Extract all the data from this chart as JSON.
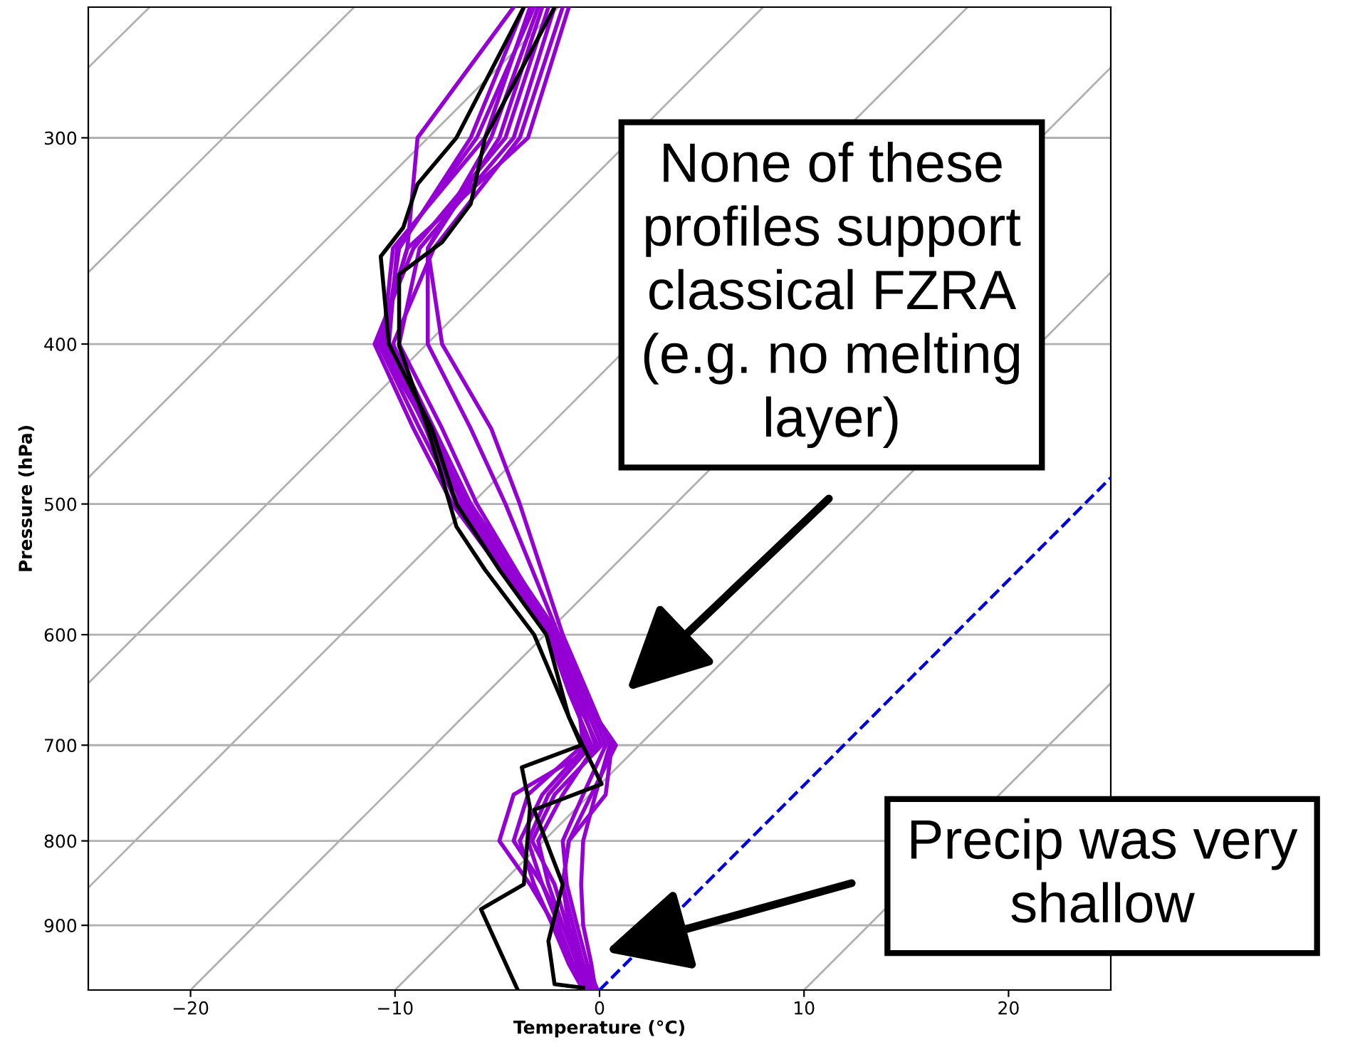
{
  "chart_data": {
    "type": "line",
    "xlabel": "Temperature (°C)",
    "ylabel": "Pressure (hPa)",
    "xlim": [
      -25,
      25
    ],
    "ylim": [
      985,
      250
    ],
    "log": "y",
    "grid": "y",
    "legend": false,
    "line_style": "solid",
    "marker": "none",
    "xticks": [
      {
        "value": -20,
        "label": "−20"
      },
      {
        "value": -10,
        "label": "−10"
      },
      0,
      10,
      20
    ],
    "yticks": [
      300,
      400,
      500,
      600,
      700,
      800,
      900
    ],
    "series": [
      {
        "color": "#b0b0b0",
        "x": [
          10,
          25
        ],
        "values": [
          985,
          642
        ]
      },
      {
        "color": "#b0b0b0",
        "x": [
          -10,
          25
        ],
        "values": [
          985,
          362
        ]
      },
      {
        "color": "#b0b0b0",
        "x": [
          -20,
          25
        ],
        "values": [
          985,
          272
        ]
      },
      {
        "color": "#b0b0b0",
        "x": [
          -25,
          18.0
        ],
        "values": [
          854,
          250
        ]
      },
      {
        "color": "#b0b0b0",
        "x": [
          -25,
          8.0
        ],
        "values": [
          642,
          250
        ]
      },
      {
        "color": "#b0b0b0",
        "x": [
          -25,
          -2.0
        ],
        "values": [
          482,
          250
        ]
      },
      {
        "color": "#b0b0b0",
        "x": [
          -25,
          -12.0
        ],
        "values": [
          362,
          250
        ]
      },
      {
        "color": "#b0b0b0",
        "x": [
          -25,
          -22.0
        ],
        "values": [
          272,
          250
        ]
      },
      {
        "color": "#9400d3",
        "x": [
          -3.4,
          -5.6,
          -10.1,
          -10.6,
          -8.4,
          -6.7,
          -2.3,
          -1.1,
          -0.2,
          -1.8,
          -3.0,
          -2.5,
          -1.8,
          -1.1,
          -0.4
        ],
        "values": [
          250,
          300,
          350,
          400,
          450,
          500,
          600,
          650,
          700,
          750,
          800,
          850,
          900,
          950,
          985
        ]
      },
      {
        "color": "#9400d3",
        "x": [
          -2.5,
          -4.6,
          -9.1,
          -11.0,
          -9.1,
          -7.2,
          -2.5,
          -1.3,
          -0.6,
          -2.8,
          -3.9,
          -3.2,
          -2.3,
          -1.5,
          -0.8
        ],
        "values": [
          250,
          300,
          350,
          400,
          450,
          500,
          600,
          650,
          700,
          750,
          800,
          850,
          900,
          950,
          985
        ]
      },
      {
        "color": "#9400d3",
        "x": [
          -1.8,
          -3.9,
          -8.1,
          -10.1,
          -8.1,
          -6.3,
          -2.0,
          -0.8,
          0.3,
          -0.8,
          -1.8,
          -1.6,
          -1.1,
          -0.6,
          -0.1
        ],
        "values": [
          250,
          300,
          350,
          400,
          450,
          500,
          600,
          650,
          700,
          750,
          800,
          850,
          900,
          950,
          985
        ]
      },
      {
        "color": "#9400d3",
        "x": [
          -2.8,
          -4.9,
          -8.4,
          -7.7,
          -5.3,
          -3.9,
          -1.8,
          -0.6,
          0.5,
          -0.2,
          -0.8,
          -0.9,
          -0.8,
          -0.4,
          -0.2
        ],
        "values": [
          250,
          300,
          350,
          400,
          450,
          500,
          600,
          650,
          700,
          750,
          800,
          850,
          900,
          950,
          985
        ]
      },
      {
        "color": "#9400d3",
        "x": [
          -3.0,
          -5.3,
          -8.4,
          -8.4,
          -6.3,
          -4.6,
          -2.0,
          -0.8,
          0.6,
          0.3,
          -1.5,
          -1.8,
          -1.5,
          -0.8,
          -0.3
        ],
        "values": [
          250,
          300,
          350,
          400,
          450,
          500,
          600,
          650,
          700,
          750,
          800,
          850,
          900,
          950,
          985
        ]
      },
      {
        "color": "#9400d3",
        "x": [
          -4.2,
          -8.9,
          -9.4,
          -10.8,
          -8.8,
          -6.9,
          -2.5,
          -1.5,
          -0.4,
          -2.5,
          -3.5,
          -2.8,
          -2.0,
          -1.3,
          -0.6
        ],
        "values": [
          250,
          300,
          350,
          400,
          450,
          500,
          600,
          650,
          700,
          750,
          800,
          850,
          900,
          950,
          985
        ]
      },
      {
        "color": "#9400d3",
        "x": [
          -3.7,
          -6.3,
          -9.8,
          -10.5,
          -8.5,
          -7.0,
          -2.4,
          -1.3,
          -0.1,
          -4.2,
          -4.9,
          -3.4,
          -2.2,
          -1.3,
          -0.3
        ],
        "values": [
          250,
          300,
          350,
          400,
          450,
          500,
          600,
          650,
          700,
          750,
          800,
          850,
          900,
          950,
          985
        ]
      },
      {
        "color": "#9400d3",
        "x": [
          -2.2,
          -4.2,
          -8.8,
          -9.8,
          -7.7,
          -6.0,
          -2.2,
          -1.1,
          -0.8,
          -3.5,
          -4.2,
          -2.8,
          -1.8,
          -0.9,
          -0.1
        ],
        "values": [
          250,
          300,
          350,
          400,
          450,
          500,
          600,
          650,
          700,
          750,
          800,
          850,
          900,
          950,
          985
        ]
      },
      {
        "color": "#9400d3",
        "x": [
          -1.5,
          -3.5,
          -9.4,
          -10.8,
          -8.4,
          -6.5,
          -2.2,
          -1.0,
          0.8,
          -0.4,
          -1.5,
          -1.8,
          -1.3,
          -0.8,
          -0.2
        ],
        "values": [
          250,
          300,
          350,
          400,
          450,
          500,
          600,
          650,
          700,
          750,
          800,
          850,
          900,
          950,
          985
        ]
      },
      {
        "color": "#9400d3",
        "x": [
          -3.2,
          -6.0,
          -9.9,
          -10.3,
          -8.3,
          -6.5,
          -2.2,
          -1.0,
          0.1,
          -2.2,
          -3.3,
          -2.2,
          -1.6,
          -1.0,
          -0.2
        ],
        "values": [
          250,
          300,
          350,
          400,
          450,
          500,
          600,
          650,
          700,
          750,
          800,
          850,
          900,
          950,
          985
        ]
      },
      {
        "color": "#000000",
        "x": [
          -3.7,
          -7.0,
          -8.9,
          -9.6,
          -10.7,
          -10.3,
          -8.2,
          -7.0,
          -4.9,
          -2.6,
          -1.5,
          -0.9,
          -3.8,
          -3.4,
          -3.7,
          -5.8,
          -4.0
        ],
        "values": [
          250,
          300,
          320,
          340,
          354,
          400,
          450,
          500,
          548,
          600,
          673,
          700,
          722,
          764,
          850,
          880,
          985
        ]
      },
      {
        "color": "#000000",
        "x": [
          -2.2,
          -5.6,
          -6.3,
          -7.7,
          -9.8,
          -9.8,
          -8.4,
          -7.0,
          -5.6,
          -3.2,
          -1.5,
          0.1,
          -3.2,
          -1.8,
          -2.5,
          -2.2,
          -0.8
        ],
        "values": [
          250,
          300,
          329,
          347,
          363,
          401,
          450,
          516,
          548,
          600,
          673,
          739,
          766,
          850,
          920,
          977,
          982
        ]
      },
      {
        "color": "#0000dd",
        "line_style": "dashed",
        "x": [
          0,
          25
        ],
        "values": [
          985,
          482
        ]
      }
    ],
    "annotations": [
      "None of these\nprofiles support\nclassical FZRA\n(e.g. no melting\nlayer)",
      "Precip was very\nshallow"
    ]
  }
}
